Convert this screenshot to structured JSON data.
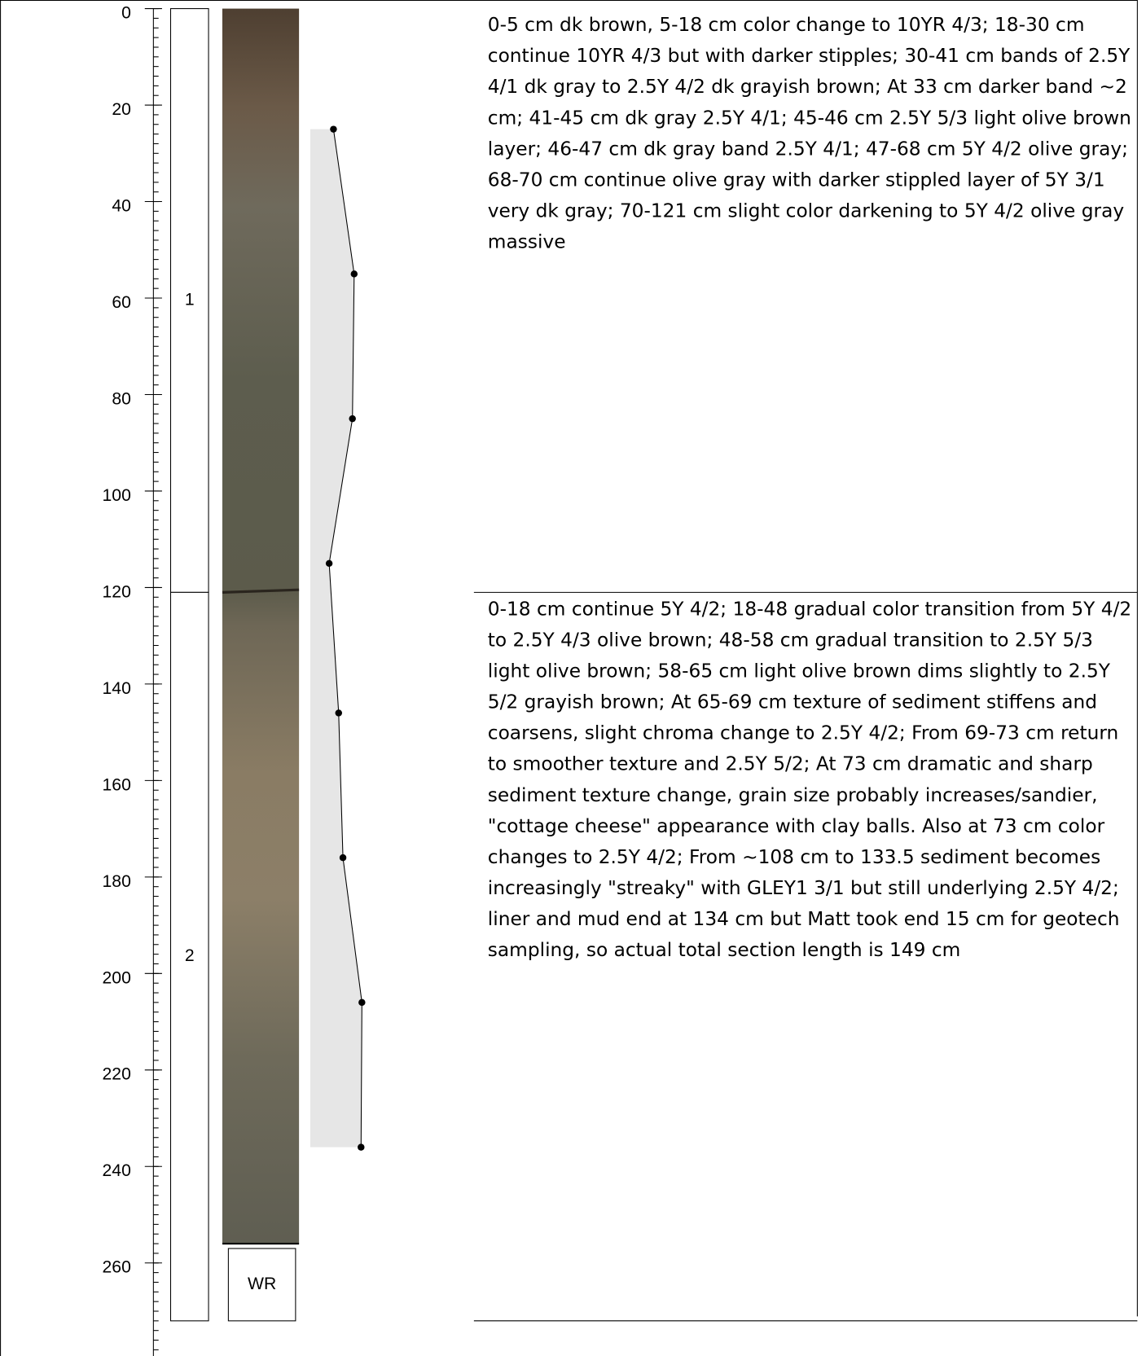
{
  "chart_data": {
    "type": "core-log",
    "ylim": [
      0,
      280
    ],
    "yticks": [
      0,
      20,
      40,
      60,
      80,
      100,
      120,
      140,
      160,
      180,
      200,
      220,
      240,
      260,
      280
    ],
    "minor_tick_interval": 2,
    "sections": [
      {
        "label": "1",
        "top": 0,
        "bottom": 121
      },
      {
        "label": "2",
        "top": 121,
        "bottom": 272
      }
    ],
    "core": {
      "top": 0,
      "bottom": 256,
      "break": 121
    },
    "whole_round": {
      "label": "WR",
      "top": 257,
      "bottom": 272
    },
    "profile": {
      "color": "#000000",
      "fill": "#e6e6e6",
      "xlim": [
        0,
        100
      ],
      "depths": [
        25,
        55,
        85,
        115,
        146,
        176,
        206,
        236
      ],
      "values": [
        27,
        51,
        49,
        22,
        33,
        38,
        60,
        59
      ]
    },
    "descriptions": [
      {
        "top": 0,
        "bottom": 121,
        "text": "0-5 cm dk brown, 5-18 cm color change to 10YR 4/3; 18-30 cm continue 10YR 4/3 but with darker stipples; 30-41 cm bands of 2.5Y 4/1 dk gray to 2.5Y 4/2 dk grayish brown; At 33 cm darker band ~2 cm; 41-45 cm dk gray 2.5Y 4/1; 45-46 cm 2.5Y 5/3 light olive brown layer; 46-47 cm dk gray band 2.5Y 4/1; 47-68 cm 5Y 4/2 olive gray; 68-70 cm continue olive gray with darker stippled layer of 5Y 3/1 very dk gray; 70-121 cm slight color darkening to 5Y 4/2 olive gray massive"
      },
      {
        "top": 121,
        "bottom": 272,
        "text": "0-18 cm continue 5Y 4/2; 18-48 gradual color transition from 5Y 4/2 to 2.5Y 4/3 olive brown; 48-58 cm gradual transition to 2.5Y 5/3 light olive brown; 58-65 cm light olive brown dims slightly to 2.5Y 5/2 grayish brown; At 65-69 cm texture of sediment stiffens and coarsens, slight chroma change to 2.5Y 4/2; From 69-73 cm return to smoother texture and 2.5Y 5/2; At 73 cm dramatic and sharp sediment texture change, grain size probably increases/sandier, \"cottage cheese\" appearance with clay balls. Also at 73 cm color changes to 2.5Y 4/2; From ~108 cm to 133.5 sediment becomes increasingly \"streaky\" with GLEY1 3/1 but still underlying 2.5Y 4/2; liner and mud end at 134 cm but Matt took end 15 cm for geotech sampling, so actual total section length is 149 cm"
      }
    ]
  }
}
